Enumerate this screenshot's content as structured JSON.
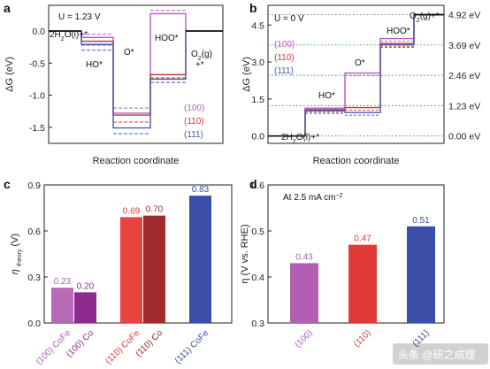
{
  "figure": {
    "watermark": "头条 @研之成理"
  },
  "chart_data": [
    {
      "panel": "a",
      "type": "line",
      "ylabel": "ΔG (eV)",
      "xlabel": "Reaction coordinate",
      "ylim": [
        -1.75,
        0.4
      ],
      "yticks": [
        "0.0",
        "-0.5",
        "-1.0",
        "-1.5"
      ],
      "annotation_U": "U = 1.23 V",
      "states": [
        "2H2O(l)+*",
        "HO*",
        "O*",
        "HOO*",
        "O2(g)+*"
      ],
      "state_labels": {
        "s0_a": "2H",
        "s0_b": "2",
        "s0_c": "O(l)+*",
        "s1": "HO*",
        "s2": "O*",
        "s3": "HOO*",
        "s4_a": "O",
        "s4_b": "2",
        "s4_c": "(g)",
        "s4_d": "+*"
      },
      "series": [
        {
          "name": "(100)",
          "color": "#b05cc0",
          "values": [
            0,
            -0.1,
            -1.28,
            0.27,
            0
          ],
          "shifted_values": [
            0,
            -0.05,
            -1.2,
            0.32,
            0
          ]
        },
        {
          "name": "(110)",
          "color": "#c83a3a",
          "values": [
            0,
            -0.16,
            -1.31,
            -0.68,
            0
          ],
          "shifted_values": [
            0,
            -0.22,
            -1.42,
            -0.73,
            0
          ]
        },
        {
          "name": "(111)",
          "color": "#4a5aa8",
          "values": [
            0,
            -0.21,
            -1.51,
            -0.75,
            0
          ],
          "shifted_values": [
            0,
            -0.3,
            -1.6,
            -0.8,
            0
          ]
        }
      ],
      "legend": [
        "(100)",
        "(110)",
        "(111)"
      ]
    },
    {
      "panel": "b",
      "type": "line",
      "ylabel": "ΔG (eV)",
      "xlabel": "Reaction coordinate",
      "ylim": [
        -0.3,
        5.3
      ],
      "yticks": [
        "0.0",
        "1.5",
        "3.0",
        "4.5"
      ],
      "annotation_U": "U = 0 V",
      "reference_lines": [
        "0.00 eV",
        "1.23 eV",
        "2.46 eV",
        "3.69 eV",
        "4.92 eV"
      ],
      "reference_values": [
        0,
        1.23,
        2.46,
        3.69,
        4.92
      ],
      "states": [
        "2H2O(l)+*",
        "HO*",
        "O*",
        "HOO*",
        "O2(g)+*"
      ],
      "state_labels": {
        "s0_a": "2H",
        "s0_b": "2",
        "s0_c": "O(l)+*",
        "s1": "HO*",
        "s2": "O*",
        "s3": "HOO*",
        "s4_a": "O",
        "s4_b": "2",
        "s4_c": "(g)+*"
      },
      "series": [
        {
          "name": "(100)",
          "color": "#b05cc0",
          "values": [
            0,
            1.13,
            2.55,
            3.95,
            4.92
          ]
        },
        {
          "name": "(110)",
          "color": "#c83a3a",
          "values": [
            0,
            1.07,
            1.15,
            3.75,
            4.92
          ]
        },
        {
          "name": "(111)",
          "color": "#4a5aa8",
          "values": [
            0,
            1.02,
            0.95,
            3.7,
            4.92
          ]
        }
      ],
      "legend": [
        "(100)",
        "(110)",
        "(111)"
      ]
    },
    {
      "panel": "c",
      "type": "bar",
      "ylabel_main": "η",
      "ylabel_sub": "theory",
      "ylabel_unit": "(V)",
      "ylim": [
        0,
        0.9
      ],
      "yticks": [
        "0.0",
        "0.3",
        "0.6",
        "0.9"
      ],
      "categories": [
        "(100) CoFe",
        "(100) Co",
        "(110) CoFe",
        "(110) Co",
        "(111) CoFe"
      ],
      "values": [
        0.23,
        0.2,
        0.69,
        0.7,
        0.83
      ],
      "value_labels": [
        "0.23",
        "0.20",
        "0.69",
        "0.70",
        "0.83"
      ],
      "colors": [
        "#b86ab8",
        "#8e2b91",
        "#e5443f",
        "#a02a2e",
        "#3b4ea8"
      ],
      "label_colors": [
        "#b05cc0",
        "#8e2b91",
        "#d94141",
        "#a02a2e",
        "#3b4ea8"
      ]
    },
    {
      "panel": "d",
      "type": "bar",
      "ylabel": "η (V vs. RHE)",
      "annotation_a": "At 2.5 mA cm",
      "annotation_sup": "−2",
      "ylim": [
        0.3,
        0.6
      ],
      "yticks": [
        "0.3",
        "0.4",
        "0.5",
        "0.6"
      ],
      "categories": [
        "(100)",
        "(110)",
        "(111)"
      ],
      "values": [
        0.43,
        0.47,
        0.51
      ],
      "value_labels": [
        "0.43",
        "0.47",
        "0.51"
      ],
      "colors": [
        "#b25fb3",
        "#e03a38",
        "#3b4ea8"
      ],
      "label_colors": [
        "#b05cc0",
        "#d94141",
        "#3b4ea8"
      ]
    }
  ]
}
